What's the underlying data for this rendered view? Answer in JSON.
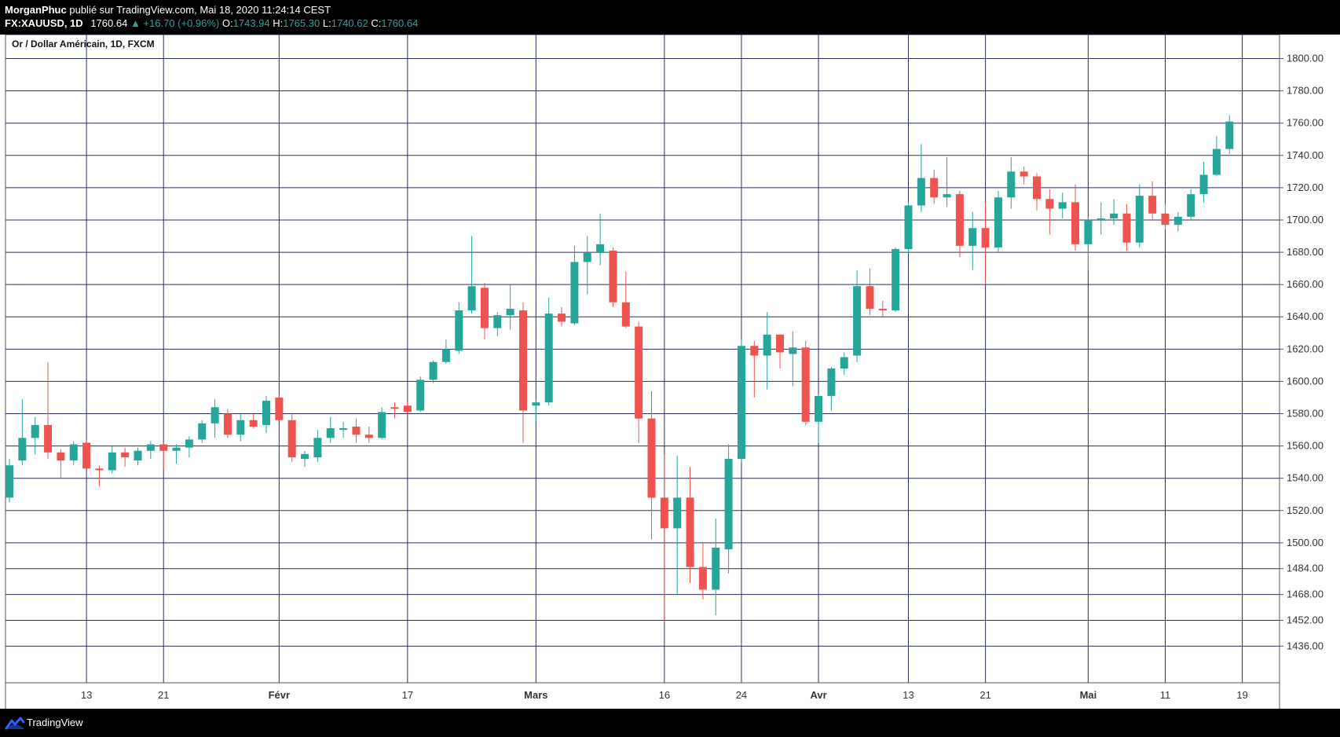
{
  "header": {
    "publisher": "MorganPhuc",
    "published_text": "publié sur TradingView.com, Mai 18, 2020 11:24:14 CEST",
    "symbol": "FX:XAUUSD, 1D",
    "last": "1760.64",
    "change": "▲ +16.70 (+0.96%)",
    "o_label": "O:",
    "o_value": "1743.94",
    "h_label": "H:",
    "h_value": "1765.30",
    "l_label": "L:",
    "l_value": "1740.62",
    "c_label": "C:",
    "c_value": "1760.64"
  },
  "footer": {
    "brand": "TradingView",
    "logo_icon": "tradingview-logo-icon"
  },
  "colors": {
    "up": "#26a69a",
    "down": "#ef5350",
    "grid": "#2a2e5a",
    "background": "#ffffff",
    "axis_text": "#333333"
  },
  "chart_data": {
    "type": "candlestick",
    "title": "Or / Dollar Américain, 1D, FXCM",
    "ylim": [
      1424,
      1810
    ],
    "y_ticks": [
      1436,
      1452,
      1468,
      1484,
      1500,
      1520,
      1540,
      1560,
      1580,
      1600,
      1620,
      1640,
      1660,
      1680,
      1700,
      1720,
      1740,
      1760,
      1780,
      1800
    ],
    "y_tick_labels": [
      "1436.00",
      "1452.00",
      "1468.00",
      "1484.00",
      "1500.00",
      "1520.00",
      "1540.00",
      "1560.00",
      "1580.00",
      "1600.00",
      "1620.00",
      "1640.00",
      "1660.00",
      "1680.00",
      "1700.00",
      "1720.00",
      "1740.00",
      "1760.00",
      "1780.00",
      "1800.00"
    ],
    "x_ticks": [
      {
        "label": "13",
        "index": 6,
        "bold": false
      },
      {
        "label": "21",
        "index": 12,
        "bold": false
      },
      {
        "label": "Févr",
        "index": 21,
        "bold": true
      },
      {
        "label": "17",
        "index": 31,
        "bold": false
      },
      {
        "label": "Mars",
        "index": 41,
        "bold": true
      },
      {
        "label": "16",
        "index": 51,
        "bold": false
      },
      {
        "label": "24",
        "index": 57,
        "bold": false
      },
      {
        "label": "Avr",
        "index": 63,
        "bold": true
      },
      {
        "label": "13",
        "index": 70,
        "bold": false
      },
      {
        "label": "21",
        "index": 76,
        "bold": false
      },
      {
        "label": "Mai",
        "index": 84,
        "bold": true
      },
      {
        "label": "11",
        "index": 90,
        "bold": false
      },
      {
        "label": "19",
        "index": 96,
        "bold": false
      }
    ],
    "candles": [
      {
        "o": 1528,
        "h": 1552,
        "l": 1525,
        "c": 1548
      },
      {
        "o": 1551,
        "h": 1589,
        "l": 1548,
        "c": 1565
      },
      {
        "o": 1565,
        "h": 1578,
        "l": 1555,
        "c": 1573
      },
      {
        "o": 1573,
        "h": 1612,
        "l": 1552,
        "c": 1556
      },
      {
        "o": 1556,
        "h": 1558,
        "l": 1540,
        "c": 1551
      },
      {
        "o": 1551,
        "h": 1563,
        "l": 1548,
        "c": 1561
      },
      {
        "o": 1562,
        "h": 1564,
        "l": 1546,
        "c": 1546
      },
      {
        "o": 1546,
        "h": 1548,
        "l": 1535,
        "c": 1545
      },
      {
        "o": 1545,
        "h": 1560,
        "l": 1543,
        "c": 1556
      },
      {
        "o": 1556,
        "h": 1559,
        "l": 1547,
        "c": 1553
      },
      {
        "o": 1551,
        "h": 1559,
        "l": 1548,
        "c": 1557
      },
      {
        "o": 1557,
        "h": 1563,
        "l": 1552,
        "c": 1561
      },
      {
        "o": 1561,
        "h": 1562,
        "l": 1546,
        "c": 1557
      },
      {
        "o": 1557,
        "h": 1561,
        "l": 1549,
        "c": 1559
      },
      {
        "o": 1559,
        "h": 1566,
        "l": 1553,
        "c": 1564
      },
      {
        "o": 1564,
        "h": 1576,
        "l": 1562,
        "c": 1574
      },
      {
        "o": 1574,
        "h": 1589,
        "l": 1565,
        "c": 1584
      },
      {
        "o": 1580,
        "h": 1583,
        "l": 1565,
        "c": 1567
      },
      {
        "o": 1567,
        "h": 1580,
        "l": 1563,
        "c": 1576
      },
      {
        "o": 1576,
        "h": 1580,
        "l": 1571,
        "c": 1572
      },
      {
        "o": 1573,
        "h": 1591,
        "l": 1568,
        "c": 1588
      },
      {
        "o": 1590,
        "h": 1592,
        "l": 1575,
        "c": 1576
      },
      {
        "o": 1576,
        "h": 1580,
        "l": 1550,
        "c": 1553
      },
      {
        "o": 1552,
        "h": 1557,
        "l": 1547,
        "c": 1555
      },
      {
        "o": 1553,
        "h": 1570,
        "l": 1550,
        "c": 1565
      },
      {
        "o": 1565,
        "h": 1578,
        "l": 1562,
        "c": 1571
      },
      {
        "o": 1570,
        "h": 1575,
        "l": 1565,
        "c": 1571
      },
      {
        "o": 1572,
        "h": 1577,
        "l": 1562,
        "c": 1567
      },
      {
        "o": 1567,
        "h": 1572,
        "l": 1562,
        "c": 1565
      },
      {
        "o": 1565,
        "h": 1584,
        "l": 1564,
        "c": 1581
      },
      {
        "o": 1584,
        "h": 1587,
        "l": 1577,
        "c": 1583
      },
      {
        "o": 1585,
        "h": 1587,
        "l": 1580,
        "c": 1581
      },
      {
        "o": 1582,
        "h": 1603,
        "l": 1581,
        "c": 1601
      },
      {
        "o": 1601,
        "h": 1613,
        "l": 1599,
        "c": 1612
      },
      {
        "o": 1612,
        "h": 1626,
        "l": 1611,
        "c": 1620
      },
      {
        "o": 1619,
        "h": 1649,
        "l": 1617,
        "c": 1644
      },
      {
        "o": 1644,
        "h": 1690,
        "l": 1642,
        "c": 1659
      },
      {
        "o": 1658,
        "h": 1661,
        "l": 1626,
        "c": 1633
      },
      {
        "o": 1633,
        "h": 1643,
        "l": 1628,
        "c": 1641
      },
      {
        "o": 1641,
        "h": 1660,
        "l": 1632,
        "c": 1645
      },
      {
        "o": 1644,
        "h": 1649,
        "l": 1562,
        "c": 1582
      },
      {
        "o": 1585,
        "h": 1588,
        "l": 1575,
        "c": 1587
      },
      {
        "o": 1587,
        "h": 1652,
        "l": 1585,
        "c": 1642
      },
      {
        "o": 1642,
        "h": 1646,
        "l": 1634,
        "c": 1637
      },
      {
        "o": 1636,
        "h": 1684,
        "l": 1635,
        "c": 1674
      },
      {
        "o": 1674,
        "h": 1690,
        "l": 1654,
        "c": 1680
      },
      {
        "o": 1680,
        "h": 1704,
        "l": 1672,
        "c": 1685
      },
      {
        "o": 1681,
        "h": 1683,
        "l": 1646,
        "c": 1649
      },
      {
        "o": 1649,
        "h": 1668,
        "l": 1633,
        "c": 1634
      },
      {
        "o": 1634,
        "h": 1637,
        "l": 1562,
        "c": 1577
      },
      {
        "o": 1577,
        "h": 1594,
        "l": 1502,
        "c": 1528
      },
      {
        "o": 1528,
        "h": 1555,
        "l": 1451,
        "c": 1509
      },
      {
        "o": 1509,
        "h": 1554,
        "l": 1468,
        "c": 1528
      },
      {
        "o": 1528,
        "h": 1547,
        "l": 1475,
        "c": 1485
      },
      {
        "o": 1485,
        "h": 1500,
        "l": 1465,
        "c": 1471
      },
      {
        "o": 1471,
        "h": 1515,
        "l": 1455,
        "c": 1497
      },
      {
        "o": 1496,
        "h": 1561,
        "l": 1481,
        "c": 1552
      },
      {
        "o": 1552,
        "h": 1626,
        "l": 1550,
        "c": 1622
      },
      {
        "o": 1622,
        "h": 1625,
        "l": 1590,
        "c": 1616
      },
      {
        "o": 1616,
        "h": 1643,
        "l": 1595,
        "c": 1629
      },
      {
        "o": 1629,
        "h": 1629,
        "l": 1608,
        "c": 1618
      },
      {
        "o": 1617,
        "h": 1631,
        "l": 1597,
        "c": 1621
      },
      {
        "o": 1621,
        "h": 1625,
        "l": 1573,
        "c": 1575
      },
      {
        "o": 1575,
        "h": 1592,
        "l": 1562,
        "c": 1591
      },
      {
        "o": 1591,
        "h": 1609,
        "l": 1582,
        "c": 1608
      },
      {
        "o": 1608,
        "h": 1618,
        "l": 1604,
        "c": 1615
      },
      {
        "o": 1616,
        "h": 1669,
        "l": 1612,
        "c": 1659
      },
      {
        "o": 1659,
        "h": 1670,
        "l": 1641,
        "c": 1645
      },
      {
        "o": 1645,
        "h": 1650,
        "l": 1640,
        "c": 1644
      },
      {
        "o": 1644,
        "h": 1683,
        "l": 1643,
        "c": 1682
      },
      {
        "o": 1682,
        "h": 1711,
        "l": 1679,
        "c": 1709
      },
      {
        "o": 1709,
        "h": 1747,
        "l": 1705,
        "c": 1726
      },
      {
        "o": 1726,
        "h": 1731,
        "l": 1710,
        "c": 1714
      },
      {
        "o": 1714,
        "h": 1739,
        "l": 1708,
        "c": 1716
      },
      {
        "o": 1716,
        "h": 1718,
        "l": 1677,
        "c": 1684
      },
      {
        "o": 1684,
        "h": 1705,
        "l": 1669,
        "c": 1695
      },
      {
        "o": 1695,
        "h": 1711,
        "l": 1660,
        "c": 1683
      },
      {
        "o": 1683,
        "h": 1718,
        "l": 1680,
        "c": 1714
      },
      {
        "o": 1714,
        "h": 1739,
        "l": 1707,
        "c": 1730
      },
      {
        "o": 1730,
        "h": 1733,
        "l": 1722,
        "c": 1727
      },
      {
        "o": 1727,
        "h": 1729,
        "l": 1706,
        "c": 1713
      },
      {
        "o": 1713,
        "h": 1719,
        "l": 1691,
        "c": 1707
      },
      {
        "o": 1707,
        "h": 1717,
        "l": 1701,
        "c": 1711
      },
      {
        "o": 1711,
        "h": 1722,
        "l": 1681,
        "c": 1685
      },
      {
        "o": 1685,
        "h": 1702,
        "l": 1669,
        "c": 1700
      },
      {
        "o": 1700,
        "h": 1711,
        "l": 1691,
        "c": 1701
      },
      {
        "o": 1701,
        "h": 1713,
        "l": 1697,
        "c": 1704
      },
      {
        "o": 1704,
        "h": 1710,
        "l": 1681,
        "c": 1686
      },
      {
        "o": 1686,
        "h": 1722,
        "l": 1683,
        "c": 1715
      },
      {
        "o": 1715,
        "h": 1724,
        "l": 1700,
        "c": 1704
      },
      {
        "o": 1704,
        "h": 1710,
        "l": 1694,
        "c": 1697
      },
      {
        "o": 1697,
        "h": 1705,
        "l": 1693,
        "c": 1702
      },
      {
        "o": 1702,
        "h": 1719,
        "l": 1700,
        "c": 1716
      },
      {
        "o": 1716,
        "h": 1736,
        "l": 1711,
        "c": 1728
      },
      {
        "o": 1728,
        "h": 1752,
        "l": 1727,
        "c": 1744
      },
      {
        "o": 1744,
        "h": 1765,
        "l": 1741,
        "c": 1761
      }
    ]
  }
}
